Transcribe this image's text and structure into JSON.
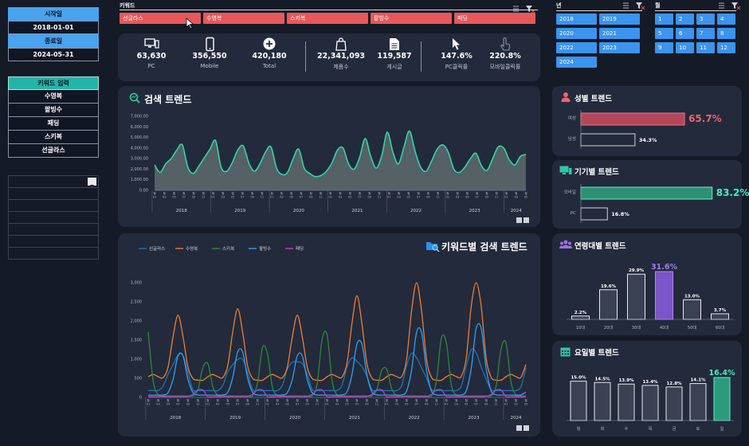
{
  "left": {
    "start_label": "시작일",
    "start_value": "2018-01-01",
    "end_label": "종료일",
    "end_value": "2024-05-31",
    "keyword_header": "키워드 입력",
    "keywords": [
      "수영복",
      "팥빙수",
      "패딩",
      "스키복",
      "선글라스"
    ]
  },
  "slicer": {
    "keyword_title": "키워드",
    "keywords": [
      "선글라스",
      "수영복",
      "스키복",
      "팥빙수",
      "패딩"
    ],
    "year_title": "년",
    "years": [
      "2018",
      "2019",
      "2020",
      "2021",
      "2022",
      "2023",
      "2024"
    ],
    "month_title": "월",
    "months": [
      "1",
      "2",
      "3",
      "4",
      "5",
      "6",
      "7",
      "8",
      "9",
      "10",
      "11",
      "12"
    ]
  },
  "kpis": [
    {
      "value": "63,630",
      "label": "PC",
      "icon": "monitor-icon"
    },
    {
      "value": "356,550",
      "label": "Mobile",
      "icon": "phone-icon"
    },
    {
      "value": "420,180",
      "label": "Total",
      "icon": "plus-circle-icon"
    },
    {
      "value": "22,341,093",
      "label": "제품수",
      "icon": "bag-icon"
    },
    {
      "value": "119,587",
      "label": "게시글",
      "icon": "document-icon"
    },
    {
      "value": "147.6%",
      "label": "PC클릭률",
      "icon": "cursor-icon"
    },
    {
      "value": "220.8%",
      "label": "모바일클릭률",
      "icon": "touch-icon"
    }
  ],
  "search_trend": {
    "title": "검색 트렌드",
    "y_ticks": [
      "7,000.00",
      "6,000.00",
      "5,000.00",
      "4,000.00",
      "3,000.00",
      "2,000.00",
      "1,000.00",
      "0.00"
    ],
    "year_labels": [
      "2018",
      "2019",
      "2020",
      "2021",
      "2022",
      "2023",
      "2024"
    ],
    "values": [
      2400,
      1700,
      2500,
      3000,
      3800,
      4300,
      2200,
      1600,
      2300,
      3100,
      3900,
      4700,
      2200,
      1800,
      2600,
      3800,
      4200,
      2600,
      1800,
      2500,
      3600,
      4100,
      2100,
      1500,
      1700,
      3000,
      3900,
      2100,
      1600,
      1300,
      1400,
      1800,
      2600,
      3800,
      4000,
      2500,
      2000,
      3100,
      4900,
      3200,
      2100,
      3300,
      5500,
      3600,
      2500,
      4100,
      5600,
      3700,
      2200,
      1800,
      2800,
      3900,
      4300,
      3600,
      2000,
      1700,
      2200,
      3000,
      3500,
      2300,
      1900,
      3000,
      4100,
      4000,
      2900,
      2400,
      3200,
      3400
    ]
  },
  "kw_trend": {
    "title": "키워드별 검색 트렌드",
    "legend": [
      "선글라스",
      "수영복",
      "스키복",
      "팥빙수",
      "패딩"
    ],
    "colors": [
      "#1d74b6",
      "#ef7c30",
      "#2a8a3a",
      "#2ba2f3",
      "#c03ad0"
    ],
    "y_ticks": [
      "3,000",
      "2,500",
      "2,000",
      "1,500",
      "1,000",
      "500",
      "0"
    ],
    "year_labels": [
      "2018",
      "2019",
      "2020",
      "2021",
      "2022",
      "2023",
      "2024"
    ]
  },
  "gender": {
    "title": "성별 트렌드",
    "rows": [
      {
        "label": "여성",
        "value": "65.7%",
        "pct": 65.7
      },
      {
        "label": "남성",
        "value": "34.3%",
        "pct": 34.3
      }
    ]
  },
  "device": {
    "title": "기기별 트렌드",
    "rows": [
      {
        "label": "모바일",
        "value": "83.2%",
        "pct": 83.2
      },
      {
        "label": "PC",
        "value": "16.8%",
        "pct": 16.8
      }
    ]
  },
  "age": {
    "title": "연령대별 트렌드",
    "cats": [
      "10대",
      "20대",
      "30대",
      "40대",
      "50대",
      "60대"
    ],
    "values": [
      2.2,
      19.6,
      29.9,
      31.6,
      13.0,
      3.7
    ],
    "labels": [
      "2.2%",
      "19.6%",
      "29.9%",
      "31.6%",
      "13.0%",
      "3.7%"
    ]
  },
  "weekday": {
    "title": "요일별 트렌드",
    "cats": [
      "월",
      "화",
      "수",
      "목",
      "금",
      "토",
      "일"
    ],
    "values": [
      15.0,
      14.5,
      13.9,
      13.4,
      12.8,
      14.1,
      16.4
    ],
    "labels": [
      "15.0%",
      "14.5%",
      "13.9%",
      "13.4%",
      "12.8%",
      "14.1%",
      "16.4%"
    ]
  }
}
